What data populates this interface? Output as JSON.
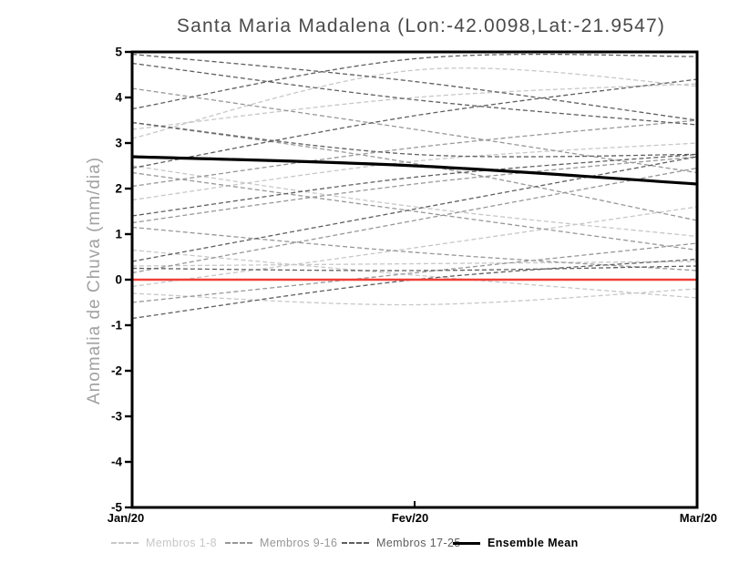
{
  "title": "Santa Maria Madalena (Lon:-42.0098,Lat:-21.9547)",
  "legend": {
    "items": [
      {
        "label": "Membros 1-8",
        "color": "#c7c7c7",
        "style": "dashed"
      },
      {
        "label": "Membros 9-16",
        "color": "#979797",
        "style": "dashed"
      },
      {
        "label": "Membros 17-25",
        "color": "#5f5f5f",
        "style": "dashed"
      },
      {
        "label": "Ensemble Mean",
        "color": "#000000",
        "style": "solid"
      }
    ]
  },
  "chart_data": {
    "type": "line",
    "title": "Santa Maria Madalena (Lon:-42.0098,Lat:-21.9547)",
    "ylabel": "Anomalia de Chuva (mm/dia)",
    "xlabel": "",
    "x": [
      "Jan/20",
      "Fev/20",
      "Mar/20"
    ],
    "ylim": [
      -5,
      5
    ],
    "y_ticks": [
      "5",
      "4",
      "3",
      "2",
      "1",
      "0",
      "-1",
      "-2",
      "-3",
      "-4",
      "-5"
    ],
    "grid": false,
    "legend_position": "bottom",
    "groups": [
      {
        "name": "Membros 1-8",
        "color": "#c7c7c7"
      },
      {
        "name": "Membros 9-16",
        "color": "#979797"
      },
      {
        "name": "Membros 17-25",
        "color": "#5f5f5f"
      }
    ],
    "members": [
      {
        "group": 0,
        "values": [
          3.3,
          4.0,
          4.3
        ]
      },
      {
        "group": 0,
        "values": [
          3.1,
          4.6,
          4.25
        ]
      },
      {
        "group": 0,
        "values": [
          2.5,
          1.6,
          0.95
        ]
      },
      {
        "group": 0,
        "values": [
          1.75,
          2.6,
          3.0
        ]
      },
      {
        "group": 0,
        "values": [
          0.65,
          0.1,
          -0.4
        ]
      },
      {
        "group": 0,
        "values": [
          0.3,
          0.35,
          0.4
        ]
      },
      {
        "group": 0,
        "values": [
          -0.15,
          0.7,
          1.6
        ]
      },
      {
        "group": 0,
        "values": [
          -0.3,
          -0.55,
          -0.2
        ]
      },
      {
        "group": 1,
        "values": [
          4.2,
          3.3,
          2.35
        ]
      },
      {
        "group": 1,
        "values": [
          3.45,
          2.55,
          1.3
        ]
      },
      {
        "group": 1,
        "values": [
          2.35,
          1.5,
          0.65
        ]
      },
      {
        "group": 1,
        "values": [
          2.05,
          2.9,
          3.5
        ]
      },
      {
        "group": 1,
        "values": [
          1.25,
          2.1,
          2.7
        ]
      },
      {
        "group": 1,
        "values": [
          1.15,
          0.6,
          0.2
        ]
      },
      {
        "group": 1,
        "values": [
          0.15,
          1.3,
          2.45
        ]
      },
      {
        "group": 1,
        "values": [
          -0.5,
          0.15,
          0.8
        ]
      },
      {
        "group": 2,
        "values": [
          4.95,
          4.35,
          3.5
        ]
      },
      {
        "group": 2,
        "values": [
          4.75,
          3.95,
          3.4
        ]
      },
      {
        "group": 2,
        "values": [
          3.75,
          4.85,
          4.9
        ]
      },
      {
        "group": 2,
        "values": [
          2.45,
          3.6,
          4.4
        ]
      },
      {
        "group": 2,
        "values": [
          1.4,
          2.25,
          2.75
        ]
      },
      {
        "group": 2,
        "values": [
          0.4,
          1.55,
          2.7
        ]
      },
      {
        "group": 2,
        "values": [
          -0.85,
          0.0,
          0.45
        ]
      },
      {
        "group": 2,
        "values": [
          0.25,
          0.2,
          0.3
        ]
      },
      {
        "group": 2,
        "values": [
          3.45,
          2.75,
          2.75
        ]
      }
    ],
    "ensemble_mean": {
      "label": "Ensemble Mean",
      "color": "#000000",
      "values": [
        2.7,
        2.5,
        2.1
      ]
    },
    "zero_line": {
      "color": "#ef4038",
      "values": [
        0,
        0,
        0
      ]
    }
  }
}
